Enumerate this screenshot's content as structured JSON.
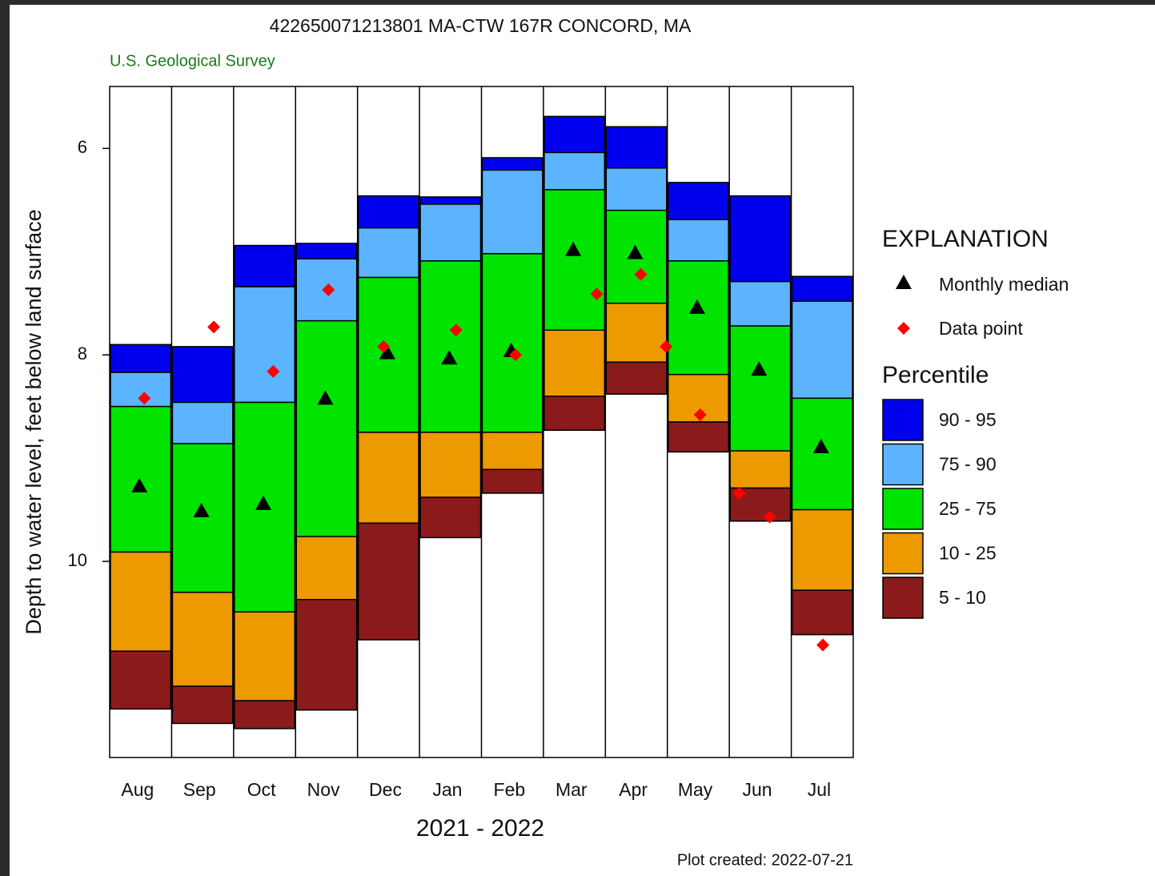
{
  "chart_data": {
    "type": "percentile-bars",
    "title": "422650071213801 MA-CTW  167R CONCORD, MA",
    "subtitle": "U.S. Geological Survey",
    "y_label": "Depth to water level, feet below land surface",
    "x_label": "2021 - 2022",
    "note": "Plot created: 2022-07-21",
    "invert_y": true,
    "ylim": [
      5.4,
      11.9
    ],
    "yticks": [
      6,
      8,
      10
    ],
    "categories": [
      "Aug",
      "Sep",
      "Oct",
      "Nov",
      "Dec",
      "Jan",
      "Feb",
      "Mar",
      "Apr",
      "May",
      "Jun",
      "Jul"
    ],
    "legend_title": "EXPLANATION",
    "bands_title": "Percentile",
    "bands": [
      {
        "name": "90 - 95",
        "color": "#0000ee",
        "top": [
          7.9,
          7.92,
          6.94,
          6.92,
          6.46,
          6.47,
          6.09,
          5.69,
          5.79,
          6.33,
          6.46,
          7.24
        ],
        "bottom": [
          8.17,
          8.46,
          7.34,
          7.07,
          6.77,
          6.54,
          6.21,
          6.04,
          6.19,
          6.69,
          7.29,
          7.48
        ]
      },
      {
        "name": "75 - 90",
        "color": "#5cb4ff",
        "top": [
          8.17,
          8.46,
          7.34,
          7.07,
          6.77,
          6.54,
          6.21,
          6.04,
          6.19,
          6.69,
          7.29,
          7.48
        ],
        "bottom": [
          8.5,
          8.86,
          8.46,
          7.67,
          7.25,
          7.09,
          7.02,
          6.4,
          6.6,
          7.09,
          7.72,
          8.42
        ]
      },
      {
        "name": "25 - 75",
        "color": "#00e400",
        "top": [
          8.5,
          8.86,
          8.46,
          7.67,
          7.25,
          7.09,
          7.02,
          6.4,
          6.6,
          7.09,
          7.72,
          8.42
        ],
        "bottom": [
          9.91,
          10.3,
          10.49,
          9.76,
          8.75,
          8.75,
          8.75,
          7.76,
          7.5,
          8.19,
          8.93,
          9.5
        ]
      },
      {
        "name": "10 - 25",
        "color": "#ec9a00",
        "top": [
          9.91,
          10.3,
          10.49,
          9.76,
          8.75,
          8.75,
          8.75,
          7.76,
          7.5,
          8.19,
          8.93,
          9.5
        ],
        "bottom": [
          10.87,
          11.21,
          11.35,
          10.37,
          9.63,
          9.38,
          9.11,
          8.4,
          8.07,
          8.65,
          9.29,
          10.28
        ]
      },
      {
        "name": "5 - 10",
        "color": "#8b1a1a",
        "top": [
          10.87,
          11.21,
          11.35,
          10.37,
          9.63,
          9.38,
          9.11,
          8.4,
          8.07,
          8.65,
          9.29,
          10.28
        ],
        "bottom": [
          11.43,
          11.57,
          11.62,
          11.44,
          10.76,
          9.77,
          9.34,
          8.73,
          8.38,
          8.94,
          9.61,
          10.71
        ]
      }
    ],
    "median": {
      "name": "Monthly median",
      "color": "#000000",
      "values": [
        9.27,
        9.51,
        9.44,
        8.42,
        7.98,
        8.03,
        7.96,
        6.98,
        7.01,
        7.54,
        8.14,
        8.89
      ]
    },
    "points": {
      "name": "Data point",
      "color": "#ff0000",
      "x": [
        0.56,
        1.68,
        2.64,
        3.53,
        4.42,
        5.59,
        6.55,
        7.86,
        8.57,
        8.98,
        9.53,
        10.16,
        10.65,
        11.51
      ],
      "values": [
        8.42,
        7.73,
        8.16,
        7.37,
        7.92,
        7.76,
        8.0,
        7.41,
        7.22,
        7.92,
        8.58,
        9.34,
        9.57,
        10.81
      ]
    }
  }
}
